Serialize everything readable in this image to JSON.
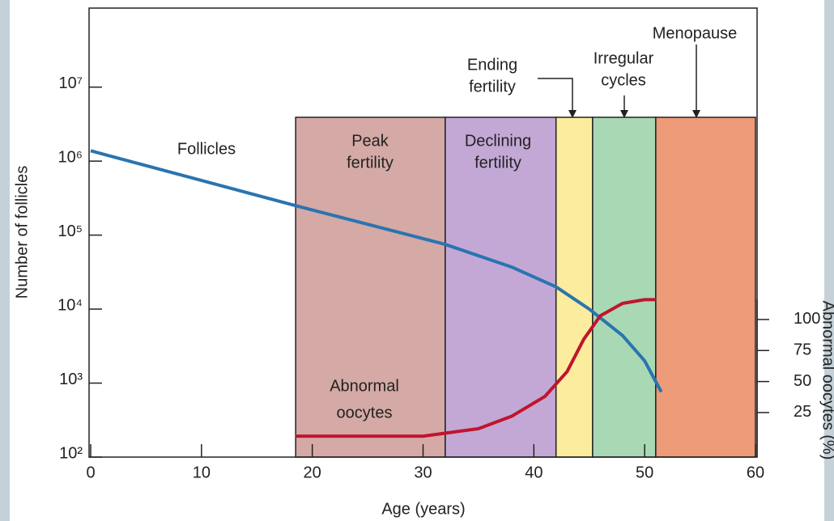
{
  "chart_data": {
    "type": "line",
    "xlabel": "Age (years)",
    "ylabel": "Number of follicles",
    "y2label": "Abnormal oocytes (%)",
    "xlim": [
      0,
      60
    ],
    "xticks": [
      0,
      10,
      20,
      30,
      40,
      50,
      60
    ],
    "ylim": [
      100,
      117000000
    ],
    "log_y": true,
    "yticks": [
      {
        "value": 100,
        "label": "10²"
      },
      {
        "value": 1000,
        "label": "10³"
      },
      {
        "value": 10000,
        "label": "10⁴"
      },
      {
        "value": 100000,
        "label": "10⁵"
      },
      {
        "value": 1000000,
        "label": "10⁶"
      },
      {
        "value": 10000000,
        "label": "10⁷"
      }
    ],
    "y2lim": [
      -10.9,
      351
    ],
    "y2ticks": [
      25,
      50,
      75,
      100
    ],
    "bands": [
      {
        "label": [
          "Peak",
          "fertility"
        ],
        "start": 18.5,
        "end": 32,
        "color": "#d4a9a6"
      },
      {
        "label": [
          "Declining",
          "fertility"
        ],
        "start": 32,
        "end": 42,
        "color": "#c3a8d6"
      },
      {
        "label": [
          "Ending",
          "fertility"
        ],
        "start": 42,
        "end": 45.3,
        "color": "#fcec9e"
      },
      {
        "label": [
          "Irregular",
          "cycles"
        ],
        "start": 45.3,
        "end": 51,
        "color": "#a8d8b4"
      },
      {
        "label": [
          "Menopause"
        ],
        "start": 51,
        "end": 60,
        "color": "#ed9b78"
      }
    ],
    "series": [
      {
        "name": "Follicles",
        "color": "#2a74b0",
        "x": [
          0,
          18.5,
          32,
          38,
          42,
          45,
          48,
          50,
          51.5
        ],
        "values": [
          1380000,
          250000,
          75000,
          37000,
          20000,
          10000,
          4400,
          2000,
          760
        ]
      },
      {
        "name": [
          "Abnormal",
          "oocytes"
        ],
        "color": "#c0152d",
        "axis": "y2",
        "x": [
          18.5,
          30,
          35,
          38,
          41,
          43,
          44.5,
          46,
          48,
          50,
          51
        ],
        "values": [
          6,
          6,
          12,
          22,
          38,
          58,
          84,
          103,
          113,
          116,
          116
        ]
      }
    ]
  }
}
